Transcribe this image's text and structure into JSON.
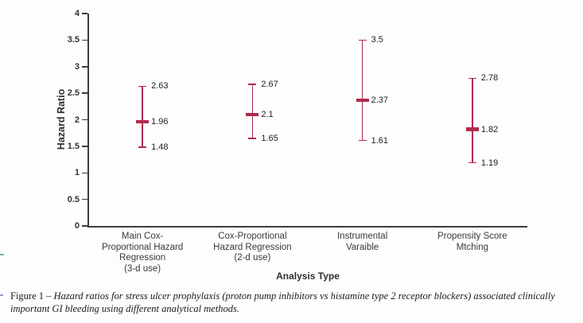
{
  "chart_data": {
    "type": "errorbar",
    "title": "",
    "xlabel": "Analysis Type",
    "ylabel": "Hazard Ratio",
    "ylim": [
      0,
      4
    ],
    "yticks": [
      "0",
      "0.5",
      "1",
      "1.5",
      "2",
      "2.5",
      "3",
      "3.5",
      "4"
    ],
    "grid": false,
    "legend": null,
    "categories": [
      [
        "Main Cox-",
        "Proportional Hazard",
        "Regression",
        "(3-d use)"
      ],
      [
        "Cox-Proportional",
        "Hazard Regression",
        "(2-d use)"
      ],
      [
        "Instrumental",
        "Varaible"
      ],
      [
        "Propensity Score",
        "Mtching"
      ]
    ],
    "points": [
      {
        "estimate": "1.96",
        "ci_low": "1.48",
        "ci_high": "2.63"
      },
      {
        "estimate": "2.1",
        "ci_low": "1.65",
        "ci_high": "2.67"
      },
      {
        "estimate": "2.37",
        "ci_low": "1.61",
        "ci_high": "3.5"
      },
      {
        "estimate": "1.82",
        "ci_low": "1.19",
        "ci_high": "2.78"
      }
    ]
  },
  "caption": {
    "figure_label": "Figure 1",
    "separator": "–",
    "text": "Hazard ratios for stress ulcer prophylaxis (proton pump inhibitors vs histamine type 2 receptor blockers) associated clinically important GI bleeding using different analytical methods."
  },
  "colors": {
    "errorbar": "#ae2c4e",
    "axis": "#3d3d3d",
    "tick_text": "#333333",
    "value_text": "#222222"
  }
}
